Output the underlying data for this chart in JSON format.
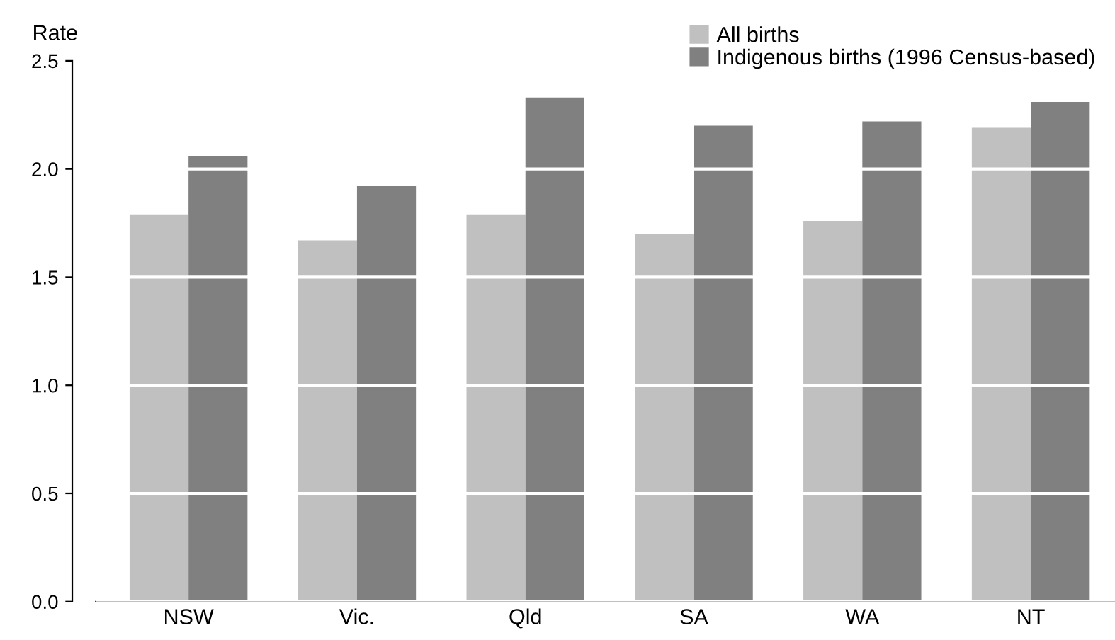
{
  "chart_data": {
    "type": "bar",
    "ylabel": "Rate",
    "categories": [
      "NSW",
      "Vic.",
      "Qld",
      "SA",
      "WA",
      "NT"
    ],
    "series": [
      {
        "name": "All births",
        "color": "#c0c0c0",
        "values": [
          1.79,
          1.67,
          1.79,
          1.7,
          1.76,
          2.19
        ]
      },
      {
        "name": "Indigenous births (1996 Census-based)",
        "color": "#808080",
        "values": [
          2.06,
          1.92,
          2.33,
          2.2,
          2.22,
          2.31
        ]
      }
    ],
    "ylim": [
      0,
      2.5
    ],
    "yticks": [
      {
        "value": 0,
        "label": "0.0"
      },
      {
        "value": 0.5,
        "label": "0.5"
      },
      {
        "value": 1.0,
        "label": "1.0"
      },
      {
        "value": 1.5,
        "label": "1.5"
      },
      {
        "value": 2.0,
        "label": "2.0"
      },
      {
        "value": 2.5,
        "label": "2.5"
      }
    ],
    "grid": "y",
    "legend": "top right"
  }
}
